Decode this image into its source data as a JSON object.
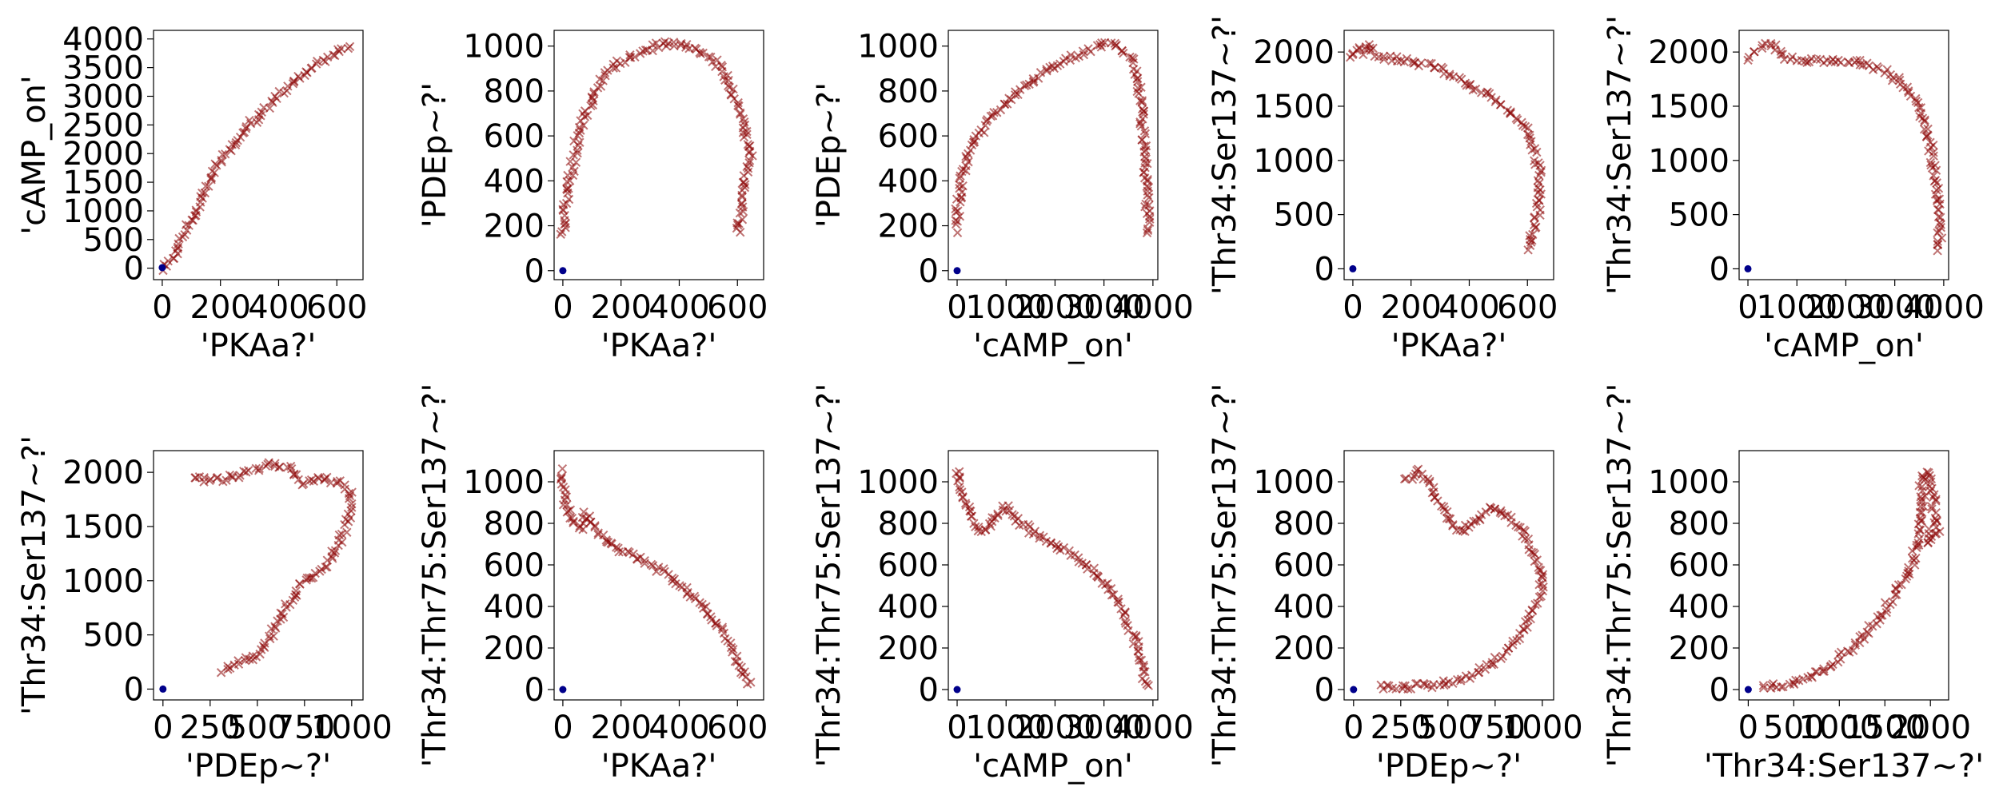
{
  "colors": {
    "cross": "#8b0000",
    "dot": "#00008b"
  },
  "chart_data": [
    {
      "type": "scatter",
      "xlabel": "'PKAa?'",
      "ylabel": "'cAMP_on'",
      "xticks": [
        0,
        200,
        400,
        600
      ],
      "yticks": [
        0,
        500,
        1000,
        1500,
        2000,
        2500,
        3000,
        3500,
        4000
      ],
      "xlim": [
        -30,
        690
      ],
      "ylim": [
        -200,
        4150
      ],
      "curve": [
        [
          0,
          0
        ],
        [
          20,
          60
        ],
        [
          50,
          300
        ],
        [
          80,
          650
        ],
        [
          120,
          1050
        ],
        [
          160,
          1500
        ],
        [
          200,
          1900
        ],
        [
          260,
          2250
        ],
        [
          300,
          2500
        ],
        [
          350,
          2750
        ],
        [
          400,
          3000
        ],
        [
          450,
          3250
        ],
        [
          500,
          3450
        ],
        [
          550,
          3600
        ],
        [
          600,
          3750
        ],
        [
          650,
          3850
        ]
      ],
      "dot": [
        0,
        10
      ]
    },
    {
      "type": "scatter",
      "xlabel": "'PKAa?'",
      "ylabel": "'PDEp~?'",
      "xticks": [
        0,
        200,
        400,
        600
      ],
      "yticks": [
        0,
        200,
        400,
        600,
        800,
        1000
      ],
      "xlim": [
        -30,
        690
      ],
      "ylim": [
        -40,
        1070
      ],
      "curve": [
        [
          0,
          160
        ],
        [
          5,
          250
        ],
        [
          15,
          350
        ],
        [
          30,
          450
        ],
        [
          50,
          580
        ],
        [
          80,
          700
        ],
        [
          120,
          820
        ],
        [
          180,
          920
        ],
        [
          250,
          960
        ],
        [
          300,
          990
        ],
        [
          350,
          1010
        ],
        [
          400,
          1010
        ],
        [
          450,
          990
        ],
        [
          500,
          960
        ],
        [
          550,
          900
        ],
        [
          580,
          800
        ],
        [
          610,
          700
        ],
        [
          630,
          600
        ],
        [
          645,
          500
        ],
        [
          620,
          360
        ],
        [
          600,
          150
        ]
      ],
      "dot": [
        0,
        0
      ]
    },
    {
      "type": "scatter",
      "xlabel": "'cAMP_on'",
      "ylabel": "'PDEp~?'",
      "xticks": [
        0,
        1000,
        2000,
        3000,
        4000
      ],
      "yticks": [
        0,
        200,
        400,
        600,
        800,
        1000
      ],
      "xlim": [
        -180,
        4100
      ],
      "ylim": [
        -40,
        1070
      ],
      "curve": [
        [
          0,
          180
        ],
        [
          20,
          300
        ],
        [
          100,
          420
        ],
        [
          300,
          550
        ],
        [
          600,
          660
        ],
        [
          1000,
          750
        ],
        [
          1500,
          840
        ],
        [
          2000,
          910
        ],
        [
          2500,
          960
        ],
        [
          3000,
          1010
        ],
        [
          3300,
          1000
        ],
        [
          3550,
          950
        ],
        [
          3700,
          850
        ],
        [
          3780,
          700
        ],
        [
          3820,
          550
        ],
        [
          3850,
          400
        ],
        [
          3880,
          250
        ],
        [
          3900,
          150
        ]
      ],
      "dot": [
        0,
        0
      ]
    },
    {
      "type": "scatter",
      "xlabel": "'PKAa?'",
      "ylabel": "'Thr34:Ser137~?'",
      "xticks": [
        0,
        200,
        400,
        600
      ],
      "yticks": [
        0,
        500,
        1000,
        1500,
        2000
      ],
      "xlim": [
        -30,
        690
      ],
      "ylim": [
        -100,
        2200
      ],
      "curve": [
        [
          0,
          1950
        ],
        [
          15,
          2050
        ],
        [
          30,
          2000
        ],
        [
          50,
          2080
        ],
        [
          70,
          2000
        ],
        [
          100,
          1950
        ],
        [
          200,
          1920
        ],
        [
          300,
          1850
        ],
        [
          400,
          1700
        ],
        [
          500,
          1550
        ],
        [
          550,
          1420
        ],
        [
          600,
          1250
        ],
        [
          630,
          1050
        ],
        [
          645,
          800
        ],
        [
          640,
          560
        ],
        [
          620,
          370
        ],
        [
          600,
          150
        ]
      ],
      "dot": [
        0,
        0
      ]
    },
    {
      "type": "scatter",
      "xlabel": "'cAMP_on'",
      "ylabel": "'Thr34:Ser137~?'",
      "xticks": [
        0,
        1000,
        2000,
        3000,
        4000
      ],
      "yticks": [
        0,
        500,
        1000,
        1500,
        2000
      ],
      "xlim": [
        -180,
        4100
      ],
      "ylim": [
        -100,
        2200
      ],
      "curve": [
        [
          0,
          1950
        ],
        [
          100,
          2000
        ],
        [
          300,
          2050
        ],
        [
          500,
          2080
        ],
        [
          800,
          1950
        ],
        [
          1200,
          1920
        ],
        [
          1800,
          1930
        ],
        [
          2400,
          1900
        ],
        [
          2900,
          1800
        ],
        [
          3300,
          1650
        ],
        [
          3550,
          1450
        ],
        [
          3700,
          1200
        ],
        [
          3800,
          950
        ],
        [
          3850,
          750
        ],
        [
          3880,
          550
        ],
        [
          3900,
          350
        ],
        [
          3920,
          150
        ]
      ],
      "dot": [
        0,
        0
      ]
    },
    {
      "type": "scatter",
      "xlabel": "'PDEp~?'",
      "ylabel": "'Thr34:Ser137~?'",
      "xticks": [
        0,
        250,
        500,
        750,
        1000
      ],
      "yticks": [
        0,
        500,
        1000,
        1500,
        2000
      ],
      "xlim": [
        -50,
        1060
      ],
      "ylim": [
        -100,
        2200
      ],
      "curve": [
        [
          160,
          1950
        ],
        [
          250,
          1920
        ],
        [
          350,
          1950
        ],
        [
          450,
          2000
        ],
        [
          550,
          2070
        ],
        [
          650,
          2050
        ],
        [
          750,
          1900
        ],
        [
          850,
          1950
        ],
        [
          950,
          1900
        ],
        [
          1000,
          1800
        ],
        [
          1000,
          1700
        ],
        [
          970,
          1500
        ],
        [
          920,
          1300
        ],
        [
          850,
          1100
        ],
        [
          720,
          950
        ],
        [
          600,
          580
        ],
        [
          500,
          320
        ],
        [
          300,
          150
        ]
      ],
      "dot": [
        0,
        0
      ]
    },
    {
      "type": "scatter",
      "xlabel": "'PKAa?'",
      "ylabel": "'Thr34:Thr75:Ser137~?'",
      "xticks": [
        0,
        200,
        400,
        600
      ],
      "yticks": [
        0,
        200,
        400,
        600,
        800,
        1000
      ],
      "xlim": [
        -30,
        690
      ],
      "ylim": [
        -50,
        1150
      ],
      "curve": [
        [
          0,
          1050
        ],
        [
          10,
          900
        ],
        [
          30,
          800
        ],
        [
          60,
          780
        ],
        [
          80,
          850
        ],
        [
          100,
          800
        ],
        [
          150,
          720
        ],
        [
          200,
          670
        ],
        [
          280,
          620
        ],
        [
          350,
          560
        ],
        [
          420,
          480
        ],
        [
          480,
          400
        ],
        [
          530,
          320
        ],
        [
          570,
          220
        ],
        [
          600,
          130
        ],
        [
          630,
          50
        ],
        [
          650,
          20
        ]
      ],
      "dot": [
        0,
        0
      ]
    },
    {
      "type": "scatter",
      "xlabel": "'cAMP_on'",
      "ylabel": "'Thr34:Thr75:Ser137~?'",
      "xticks": [
        0,
        1000,
        2000,
        3000,
        4000
      ],
      "yticks": [
        0,
        200,
        400,
        600,
        800,
        1000
      ],
      "xlim": [
        -180,
        4100
      ],
      "ylim": [
        -50,
        1150
      ],
      "curve": [
        [
          0,
          1050
        ],
        [
          100,
          950
        ],
        [
          250,
          850
        ],
        [
          400,
          780
        ],
        [
          600,
          760
        ],
        [
          800,
          850
        ],
        [
          1000,
          880
        ],
        [
          1300,
          800
        ],
        [
          1700,
          730
        ],
        [
          2200,
          670
        ],
        [
          2700,
          590
        ],
        [
          3100,
          490
        ],
        [
          3400,
          380
        ],
        [
          3600,
          260
        ],
        [
          3750,
          150
        ],
        [
          3850,
          50
        ],
        [
          3900,
          10
        ]
      ],
      "dot": [
        0,
        0
      ]
    },
    {
      "type": "scatter",
      "xlabel": "'PDEp~?'",
      "ylabel": "'Thr34:Thr75:Ser137~?'",
      "xticks": [
        0,
        250,
        500,
        750,
        1000
      ],
      "yticks": [
        0,
        200,
        400,
        600,
        800,
        1000
      ],
      "xlim": [
        -50,
        1060
      ],
      "ylim": [
        -50,
        1150
      ],
      "curve": [
        [
          150,
          10
        ],
        [
          250,
          10
        ],
        [
          400,
          20
        ],
        [
          550,
          40
        ],
        [
          650,
          80
        ],
        [
          760,
          150
        ],
        [
          850,
          230
        ],
        [
          920,
          320
        ],
        [
          970,
          420
        ],
        [
          1000,
          500
        ],
        [
          980,
          600
        ],
        [
          930,
          700
        ],
        [
          880,
          780
        ],
        [
          800,
          850
        ],
        [
          720,
          880
        ],
        [
          650,
          800
        ],
        [
          550,
          760
        ],
        [
          450,
          900
        ],
        [
          400,
          1000
        ],
        [
          350,
          1050
        ],
        [
          300,
          1020
        ],
        [
          250,
          1000
        ]
      ],
      "dot": [
        0,
        0
      ]
    },
    {
      "type": "scatter",
      "xlabel": "'Thr34:Ser137~?'",
      "ylabel": "'Thr34:Thr75:Ser137~?'",
      "xticks": [
        0,
        500,
        1000,
        1500,
        2000
      ],
      "yticks": [
        0,
        200,
        400,
        600,
        800,
        1000
      ],
      "xlim": [
        -100,
        2200
      ],
      "ylim": [
        -50,
        1150
      ],
      "curve": [
        [
          150,
          10
        ],
        [
          400,
          25
        ],
        [
          600,
          50
        ],
        [
          800,
          90
        ],
        [
          1000,
          150
        ],
        [
          1200,
          230
        ],
        [
          1400,
          320
        ],
        [
          1550,
          420
        ],
        [
          1700,
          520
        ],
        [
          1800,
          600
        ],
        [
          1850,
          700
        ],
        [
          1900,
          800
        ],
        [
          1920,
          900
        ],
        [
          1900,
          1000
        ],
        [
          1950,
          1050
        ],
        [
          2000,
          1000
        ],
        [
          2050,
          850
        ],
        [
          2080,
          750
        ],
        [
          2000,
          700
        ],
        [
          1950,
          780
        ]
      ],
      "dot": [
        0,
        0
      ]
    }
  ]
}
